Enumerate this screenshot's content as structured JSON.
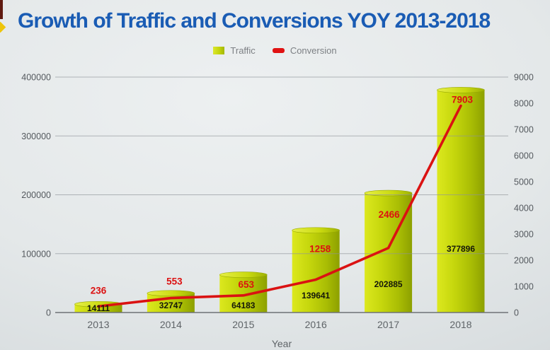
{
  "page": {
    "title": "Growth of Traffic and Conversions YOY 2013-2018"
  },
  "legend": [
    {
      "label": "Traffic",
      "color": "#bcd00a",
      "marker": "bar-swatch"
    },
    {
      "label": "Conversion",
      "color": "#e01212",
      "marker": "line-swatch"
    }
  ],
  "chart_data": {
    "type": "bar",
    "title": "Growth of Traffic and Conversions YOY 2013-2018",
    "categories": [
      "2013",
      "2014",
      "2015",
      "2016",
      "2017",
      "2018"
    ],
    "series": [
      {
        "name": "Traffic",
        "type": "bar",
        "axis": "left",
        "values": [
          14111,
          32747,
          64183,
          139641,
          202885,
          377896
        ]
      },
      {
        "name": "Conversion",
        "type": "line",
        "axis": "right",
        "values": [
          236,
          553,
          653,
          1258,
          2466,
          7903
        ]
      }
    ],
    "xlabel": "Year",
    "left_axis": {
      "min": 0,
      "max": 400000,
      "ticks": [
        0,
        100000,
        200000,
        300000,
        400000
      ]
    },
    "right_axis": {
      "min": 0,
      "max": 9000,
      "ticks": [
        0,
        1000,
        2000,
        3000,
        4000,
        5000,
        6000,
        7000,
        8000,
        9000
      ]
    },
    "grid": true,
    "legend_position": "top-center",
    "colors": {
      "title": "#1a5cb4",
      "bar": "#bcd00a",
      "line": "#e01212"
    }
  }
}
